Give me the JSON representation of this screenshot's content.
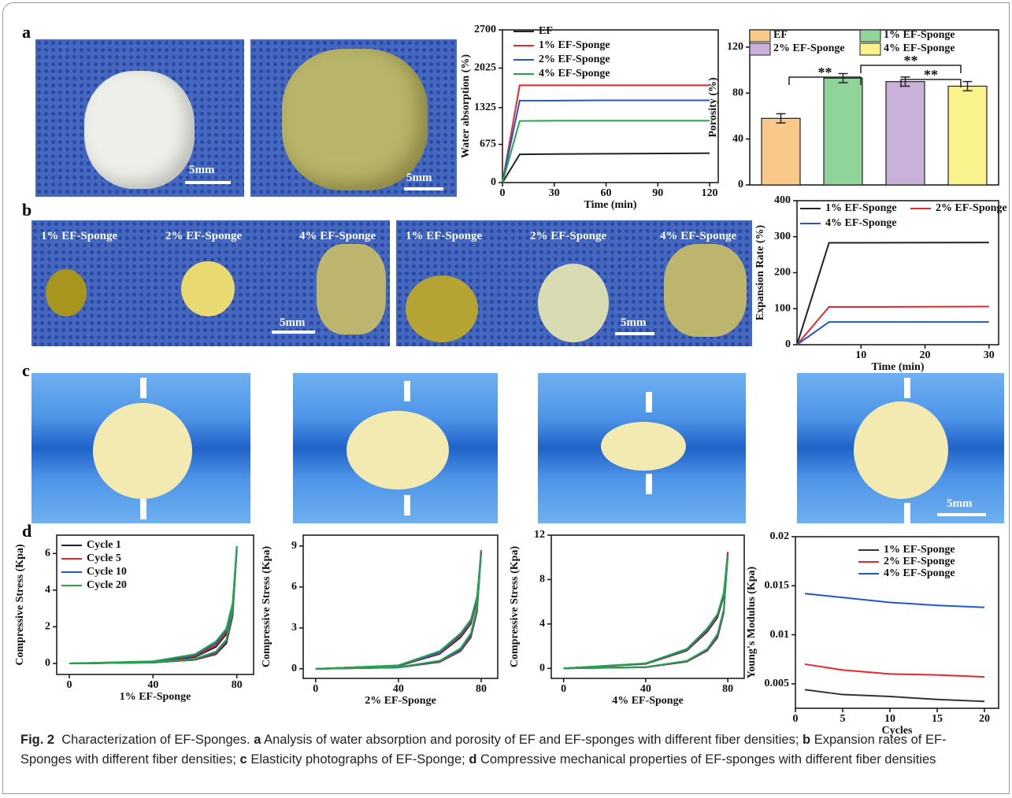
{
  "panel_labels": [
    "a",
    "b",
    "c",
    "d"
  ],
  "photo_text": {
    "a": [
      "5mm",
      "5mm"
    ],
    "b": [
      "1% EF-Sponge",
      "2% EF-Sponge",
      "4% EF-Sponge",
      "5mm",
      "1% EF-Sponge",
      "2% EF-Sponge",
      "4% EF-Sponge",
      "5mm"
    ],
    "c": [
      "5mm"
    ]
  },
  "chart_data": [
    {
      "type": "line",
      "y_label": "Water absorption (%)",
      "x_label": "Time (min)",
      "x": [
        0,
        10,
        30,
        60,
        120
      ],
      "xlim": [
        0,
        125
      ],
      "xticks": [
        0,
        30,
        60,
        90,
        120
      ],
      "ylim": [
        0,
        2700
      ],
      "yticks": [
        0,
        675,
        1325,
        2025,
        2700
      ],
      "series": [
        {
          "name": "EF",
          "color": "#222222",
          "values": [
            0,
            500,
            505,
            510,
            520
          ]
        },
        {
          "name": "1% EF-Sponge",
          "color": "#e8262a",
          "values": [
            0,
            1720,
            1720,
            1720,
            1720
          ]
        },
        {
          "name": "2% EF-Sponge",
          "color": "#2356c9",
          "values": [
            0,
            1450,
            1450,
            1455,
            1455
          ]
        },
        {
          "name": "4% EF-Sponge",
          "color": "#23a44a",
          "values": [
            0,
            1090,
            1095,
            1095,
            1095
          ]
        }
      ]
    },
    {
      "type": "bar",
      "y_label": "Porosity (%)",
      "categories": [
        "EF",
        "1% EF-Sponge",
        "2% EF-Sponge",
        "4% EF-Sponge"
      ],
      "values": [
        58,
        93,
        90,
        86
      ],
      "errors": [
        4,
        4,
        4,
        4
      ],
      "colors": [
        "#f9c98a",
        "#90d49a",
        "#c9b1d9",
        "#f8f38c"
      ],
      "ylim": [
        0,
        135
      ],
      "yticks": [
        0,
        40,
        80,
        120
      ],
      "annotations": [
        "**",
        "**",
        "**"
      ]
    },
    {
      "type": "line",
      "y_label": "Expansion Rate (%)",
      "x_label": "Time (min)",
      "x": [
        0,
        5,
        10,
        30
      ],
      "xlim": [
        0,
        31.5
      ],
      "xticks": [
        10,
        20,
        30
      ],
      "ylim": [
        0,
        400
      ],
      "yticks": [
        0,
        100,
        200,
        300,
        400
      ],
      "series": [
        {
          "name": "1% EF-Sponge",
          "color": "#222222",
          "values": [
            0,
            283,
            283,
            284
          ]
        },
        {
          "name": "2% EF-Sponge",
          "color": "#e8262a",
          "values": [
            0,
            105,
            105,
            106
          ]
        },
        {
          "name": "4% EF-Sponge",
          "color": "#2356c9",
          "values": [
            0,
            63,
            63,
            63
          ]
        }
      ]
    },
    {
      "type": "line",
      "y_label": "Compressive Stress (Kpa)",
      "x_label": "1% EF-Sponge",
      "x": [
        0,
        40,
        60,
        70,
        75,
        78,
        80,
        78,
        75,
        70,
        60,
        40,
        0
      ],
      "xlim": [
        -6,
        88
      ],
      "xticks": [
        0,
        40,
        80
      ],
      "ylim": [
        -0.6,
        7
      ],
      "yticks": [
        0,
        2,
        4,
        6
      ],
      "series": [
        {
          "name": "Cycle 1",
          "color": "#222222",
          "values": [
            0,
            0.05,
            0.2,
            0.5,
            1.1,
            2.6,
            6.4,
            3.0,
            1.6,
            0.9,
            0.35,
            0.08,
            0
          ]
        },
        {
          "name": "Cycle 5",
          "color": "#e8262a",
          "values": [
            0,
            0.05,
            0.2,
            0.55,
            1.2,
            2.7,
            6.3,
            3.1,
            1.7,
            1.0,
            0.4,
            0.1,
            0
          ]
        },
        {
          "name": "Cycle 10",
          "color": "#2356c9",
          "values": [
            0,
            0.05,
            0.22,
            0.6,
            1.25,
            2.8,
            6.2,
            3.2,
            1.8,
            1.1,
            0.45,
            0.1,
            0
          ]
        },
        {
          "name": "Cycle 20",
          "color": "#23a44a",
          "values": [
            0,
            0.06,
            0.25,
            0.65,
            1.3,
            2.9,
            6.4,
            3.3,
            1.9,
            1.2,
            0.5,
            0.12,
            0
          ]
        }
      ]
    },
    {
      "type": "line",
      "y_label": "Compressive Stress (Kpa)",
      "x_label": "2% EF-Sponge",
      "x": [
        0,
        40,
        60,
        70,
        75,
        78,
        80,
        78,
        75,
        70,
        60,
        40,
        0
      ],
      "xlim": [
        -6,
        88
      ],
      "xticks": [
        0,
        40,
        80
      ],
      "ylim": [
        -0.7,
        9.8
      ],
      "yticks": [
        0,
        3,
        6,
        9
      ],
      "series": [
        {
          "color": "#222222",
          "values": [
            0,
            0.1,
            0.5,
            1.3,
            2.3,
            4.2,
            8.6,
            5.0,
            3.3,
            2.3,
            1.1,
            0.2,
            0
          ]
        },
        {
          "color": "#e8262a",
          "values": [
            0,
            0.1,
            0.5,
            1.35,
            2.4,
            4.3,
            8.7,
            5.1,
            3.4,
            2.4,
            1.15,
            0.22,
            0
          ]
        },
        {
          "color": "#2356c9",
          "values": [
            0,
            0.1,
            0.55,
            1.4,
            2.5,
            4.4,
            8.5,
            5.2,
            3.5,
            2.5,
            1.2,
            0.24,
            0
          ]
        },
        {
          "color": "#23a44a",
          "values": [
            0,
            0.12,
            0.6,
            1.5,
            2.6,
            4.5,
            8.4,
            5.3,
            3.6,
            2.6,
            1.3,
            0.26,
            0
          ]
        }
      ]
    },
    {
      "type": "line",
      "y_label": "Compressive Stress (Kpa)",
      "x_label": "4% EF-Sponge",
      "x": [
        0,
        40,
        60,
        70,
        75,
        78,
        80,
        78,
        75,
        70,
        60,
        40,
        0
      ],
      "xlim": [
        -6,
        88
      ],
      "xticks": [
        0,
        40,
        80
      ],
      "ylim": [
        -0.9,
        12
      ],
      "yticks": [
        0,
        4,
        8,
        12
      ],
      "series": [
        {
          "color": "#222222",
          "values": [
            0,
            0.1,
            0.6,
            1.6,
            2.8,
            5.0,
            10.4,
            6.5,
            4.6,
            3.3,
            1.6,
            0.4,
            0
          ]
        },
        {
          "color": "#e8262a",
          "values": [
            0,
            0.1,
            0.62,
            1.65,
            2.9,
            5.1,
            10.5,
            6.6,
            4.7,
            3.4,
            1.65,
            0.42,
            0
          ]
        },
        {
          "color": "#2356c9",
          "values": [
            0,
            0.12,
            0.65,
            1.7,
            3.0,
            5.2,
            10.2,
            6.7,
            4.8,
            3.5,
            1.7,
            0.44,
            0
          ]
        },
        {
          "color": "#23a44a",
          "values": [
            0,
            0.12,
            0.68,
            1.75,
            3.1,
            5.3,
            10.1,
            6.8,
            4.9,
            3.6,
            1.75,
            0.46,
            0
          ]
        }
      ]
    },
    {
      "type": "line",
      "y_label": "Young's Modulus (Kpa)",
      "x_label": "Cycles",
      "x": [
        1,
        5,
        10,
        15,
        20
      ],
      "xlim": [
        0,
        21.5
      ],
      "xticks": [
        0,
        5,
        10,
        15,
        20
      ],
      "ylim": [
        0.0025,
        0.02
      ],
      "yticks": [
        0.005,
        0.01,
        0.015,
        0.02
      ],
      "series": [
        {
          "name": "1% EF-Sponge",
          "color": "#333333",
          "values": [
            0.0044,
            0.0039,
            0.0037,
            0.0034,
            0.0032
          ]
        },
        {
          "name": "2% EF-Sponge",
          "color": "#e8262a",
          "values": [
            0.007,
            0.0064,
            0.006,
            0.0059,
            0.0057
          ]
        },
        {
          "name": "4% EF-Sponge",
          "color": "#2356c9",
          "values": [
            0.0142,
            0.0138,
            0.0133,
            0.013,
            0.0128
          ]
        }
      ]
    }
  ],
  "caption": {
    "label": "Fig. 2",
    "title": "Characterization of EF-Sponges.",
    "parts": [
      {
        "letter": "a",
        "text": "Analysis of water absorption and porosity of EF and EF-sponges with different fiber densities;"
      },
      {
        "letter": "b",
        "text": "Expansion rates of EF-Sponges with different fiber densities;"
      },
      {
        "letter": "c",
        "text": "Elasticity photographs of EF-Sponge;"
      },
      {
        "letter": "d",
        "text": "Compressive mechanical properties of EF-sponges with different fiber densities"
      }
    ]
  }
}
